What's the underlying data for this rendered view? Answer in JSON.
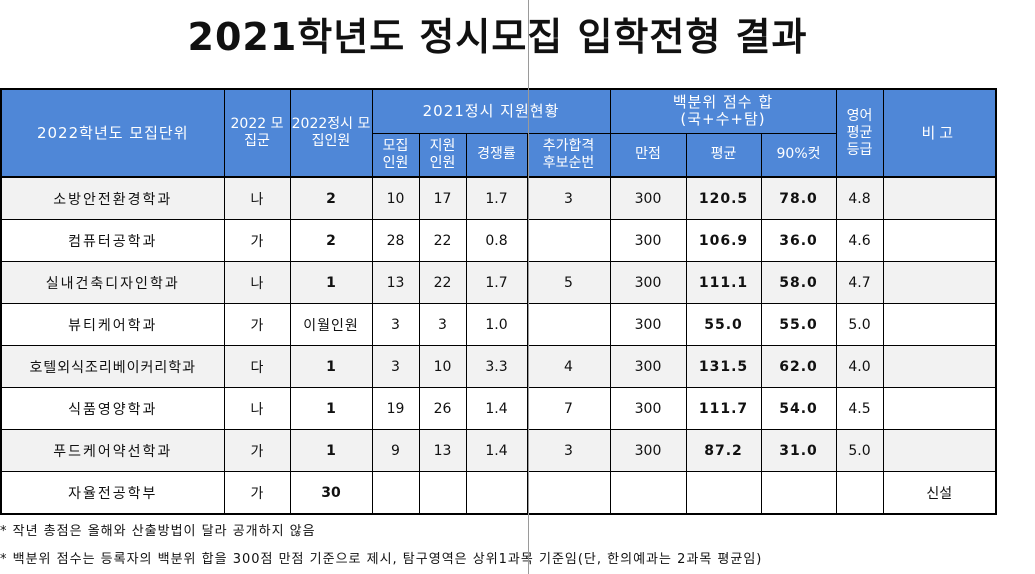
{
  "title": "2021학년도 정시모집 입학전형 결과",
  "headers": {
    "unit": "2022학년도 모집단위",
    "group": "2022 모집군",
    "quota": "2022정시 모집인원",
    "applicants_2021": "2021정시 지원현황",
    "recruit": "모집 인원",
    "applied": "지원 인원",
    "ratio": "경쟁률",
    "extra": "추가합격 후보순번",
    "percentile_sum": "백분위 점수 합",
    "percentile_sub": "(국+수+탐)",
    "full": "만점",
    "avg": "평균",
    "cut90": "90%컷",
    "english": "영어 평균 등급",
    "remarks": "비고"
  },
  "rows": [
    {
      "unit": "소방안전환경학과",
      "group": "나",
      "quota": "2",
      "recruit": "10",
      "applied": "17",
      "ratio": "1.7",
      "extra": "3",
      "full": "300",
      "avg": "120.5",
      "cut90": "78.0",
      "english": "4.8",
      "remarks": ""
    },
    {
      "unit": "컴퓨터공학과",
      "group": "가",
      "quota": "2",
      "recruit": "28",
      "applied": "22",
      "ratio": "0.8",
      "extra": "",
      "full": "300",
      "avg": "106.9",
      "cut90": "36.0",
      "english": "4.6",
      "remarks": ""
    },
    {
      "unit": "실내건축디자인학과",
      "group": "나",
      "quota": "1",
      "recruit": "13",
      "applied": "22",
      "ratio": "1.7",
      "extra": "5",
      "full": "300",
      "avg": "111.1",
      "cut90": "58.0",
      "english": "4.7",
      "remarks": ""
    },
    {
      "unit": "뷰티케어학과",
      "group": "가",
      "quota": "이월인원",
      "recruit": "3",
      "applied": "3",
      "ratio": "1.0",
      "extra": "",
      "full": "300",
      "avg": "55.0",
      "cut90": "55.0",
      "english": "5.0",
      "remarks": ""
    },
    {
      "unit": "호텔외식조리베이커리학과",
      "group": "다",
      "quota": "1",
      "recruit": "3",
      "applied": "10",
      "ratio": "3.3",
      "extra": "4",
      "full": "300",
      "avg": "131.5",
      "cut90": "62.0",
      "english": "4.0",
      "remarks": ""
    },
    {
      "unit": "식품영양학과",
      "group": "나",
      "quota": "1",
      "recruit": "19",
      "applied": "26",
      "ratio": "1.4",
      "extra": "7",
      "full": "300",
      "avg": "111.7",
      "cut90": "54.0",
      "english": "4.5",
      "remarks": ""
    },
    {
      "unit": "푸드케어약선학과",
      "group": "가",
      "quota": "1",
      "recruit": "9",
      "applied": "13",
      "ratio": "1.4",
      "extra": "3",
      "full": "300",
      "avg": "87.2",
      "cut90": "31.0",
      "english": "5.0",
      "remarks": ""
    },
    {
      "unit": "자율전공학부",
      "group": "가",
      "quota": "30",
      "recruit": "",
      "applied": "",
      "ratio": "",
      "extra": "",
      "full": "",
      "avg": "",
      "cut90": "",
      "english": "",
      "remarks": "신설"
    }
  ],
  "notes": [
    "* 작년 총점은 올해와 산출방법이 달라 공개하지 않음",
    "* 백분위 점수는 등록자의 백분위 합을 300점 만점 기준으로 제시, 탐구영역은 상위1과목 기준임(단, 한의예과는 2과목 평균임)"
  ]
}
